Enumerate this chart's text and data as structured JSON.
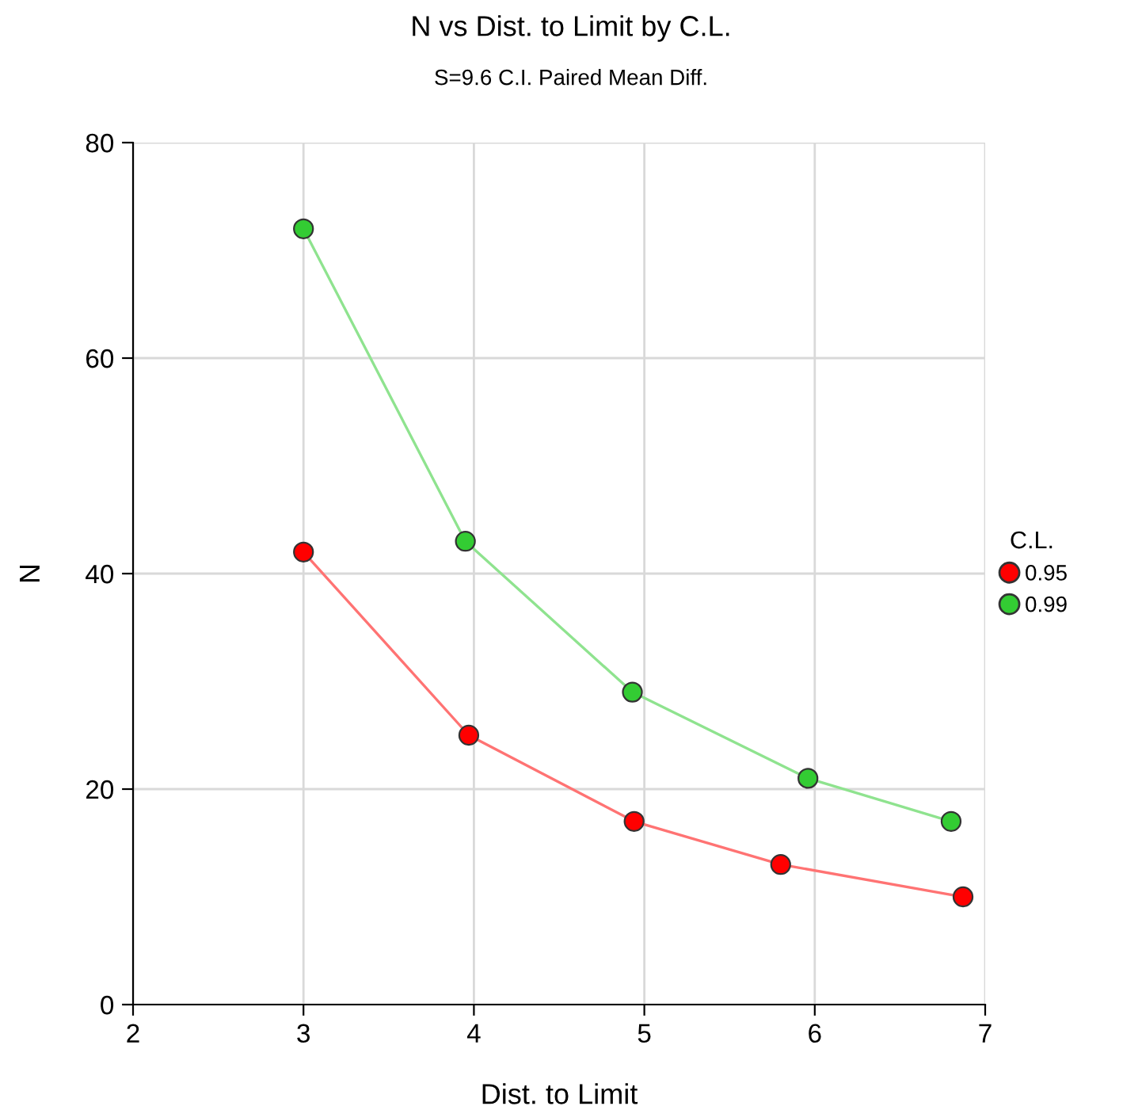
{
  "chart_data": {
    "type": "line",
    "title": "N vs Dist. to Limit by C.L.",
    "subtitle": "S=9.6 C.I. Paired Mean Diff.",
    "xlabel": "Dist. to Limit",
    "ylabel": "N",
    "legend_title": "C.L.",
    "series": [
      {
        "name": "0.95",
        "color": "#ff0000",
        "x": [
          3.0,
          3.97,
          4.94,
          5.8,
          6.87
        ],
        "values": [
          42,
          25,
          17,
          13,
          10
        ]
      },
      {
        "name": "0.99",
        "color": "#33cc33",
        "x": [
          3.0,
          3.95,
          4.93,
          5.96,
          6.8
        ],
        "values": [
          72,
          43,
          29,
          21,
          17
        ]
      }
    ],
    "xlim": [
      2,
      7
    ],
    "xticks": [
      2,
      3,
      4,
      5,
      6,
      7
    ],
    "ylim": [
      0,
      80
    ],
    "yticks": [
      0,
      20,
      40,
      60,
      80
    ],
    "grid": true,
    "legend": "right",
    "marker": "circle",
    "line_style": "solid"
  }
}
